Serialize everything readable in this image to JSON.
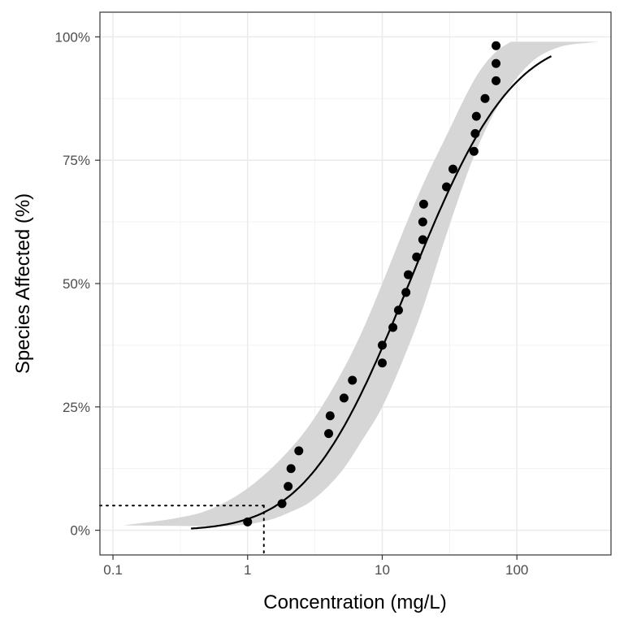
{
  "chart_data": {
    "type": "scatter",
    "title": "",
    "xlabel": "Concentration (mg/L)",
    "ylabel": "Species Affected (%)",
    "x_scale": "log10",
    "xlim": [
      0.08,
      500
    ],
    "ylim": [
      -0.05,
      1.05
    ],
    "grid": true,
    "legend": "none",
    "x_ticks": [
      {
        "value": 0.1,
        "label": "0.1"
      },
      {
        "value": 1,
        "label": "1"
      },
      {
        "value": 10,
        "label": "10"
      },
      {
        "value": 100,
        "label": "100"
      }
    ],
    "y_ticks": [
      {
        "value": 0,
        "label": "0%"
      },
      {
        "value": 0.25,
        "label": "25%"
      },
      {
        "value": 0.5,
        "label": "50%"
      },
      {
        "value": 0.75,
        "label": "75%"
      },
      {
        "value": 1,
        "label": "100%"
      }
    ],
    "points": [
      {
        "x": 1.0,
        "y": 0.017
      },
      {
        "x": 1.8,
        "y": 0.054
      },
      {
        "x": 2.0,
        "y": 0.089
      },
      {
        "x": 2.1,
        "y": 0.125
      },
      {
        "x": 2.4,
        "y": 0.161
      },
      {
        "x": 4.0,
        "y": 0.196
      },
      {
        "x": 4.1,
        "y": 0.232
      },
      {
        "x": 5.2,
        "y": 0.268
      },
      {
        "x": 6.0,
        "y": 0.304
      },
      {
        "x": 10.0,
        "y": 0.339
      },
      {
        "x": 10.0,
        "y": 0.375
      },
      {
        "x": 12.0,
        "y": 0.411
      },
      {
        "x": 13.2,
        "y": 0.446
      },
      {
        "x": 15.0,
        "y": 0.482
      },
      {
        "x": 15.6,
        "y": 0.518
      },
      {
        "x": 18.0,
        "y": 0.554
      },
      {
        "x": 20.0,
        "y": 0.589
      },
      {
        "x": 20.0,
        "y": 0.625
      },
      {
        "x": 20.3,
        "y": 0.661
      },
      {
        "x": 30.0,
        "y": 0.696
      },
      {
        "x": 33.5,
        "y": 0.732
      },
      {
        "x": 48.0,
        "y": 0.768
      },
      {
        "x": 49.0,
        "y": 0.804
      },
      {
        "x": 50.0,
        "y": 0.839
      },
      {
        "x": 58.0,
        "y": 0.875
      },
      {
        "x": 70.0,
        "y": 0.911
      },
      {
        "x": 70.0,
        "y": 0.946
      },
      {
        "x": 70.0,
        "y": 0.982
      }
    ],
    "fit_curve": {
      "distribution": "lognormal",
      "median": 15.8,
      "log10_sd": 0.6,
      "x_range": [
        0.38,
        180
      ],
      "color": "#000000"
    },
    "confidence_band": {
      "color": "#d6d6d6",
      "lower": [
        {
          "x": 0.7,
          "y": 0.008
        },
        {
          "x": 1.0,
          "y": 0.012
        },
        {
          "x": 1.5,
          "y": 0.022
        },
        {
          "x": 2.0,
          "y": 0.035
        },
        {
          "x": 3.0,
          "y": 0.06
        },
        {
          "x": 5.0,
          "y": 0.12
        },
        {
          "x": 7.0,
          "y": 0.18
        },
        {
          "x": 10.0,
          "y": 0.25
        },
        {
          "x": 15.0,
          "y": 0.36
        },
        {
          "x": 20.0,
          "y": 0.45
        },
        {
          "x": 30.0,
          "y": 0.6
        },
        {
          "x": 50.0,
          "y": 0.77
        },
        {
          "x": 80.0,
          "y": 0.88
        },
        {
          "x": 130.0,
          "y": 0.95
        },
        {
          "x": 200.0,
          "y": 0.978
        },
        {
          "x": 400.0,
          "y": 0.99
        }
      ],
      "upper": [
        {
          "x": 0.12,
          "y": 0.01
        },
        {
          "x": 0.3,
          "y": 0.025
        },
        {
          "x": 0.5,
          "y": 0.04
        },
        {
          "x": 1.0,
          "y": 0.085
        },
        {
          "x": 2.0,
          "y": 0.16
        },
        {
          "x": 3.0,
          "y": 0.22
        },
        {
          "x": 5.0,
          "y": 0.32
        },
        {
          "x": 7.0,
          "y": 0.4
        },
        {
          "x": 10.0,
          "y": 0.5
        },
        {
          "x": 15.0,
          "y": 0.62
        },
        {
          "x": 20.0,
          "y": 0.7
        },
        {
          "x": 30.0,
          "y": 0.8
        },
        {
          "x": 50.0,
          "y": 0.92
        },
        {
          "x": 70.0,
          "y": 0.97
        },
        {
          "x": 90.0,
          "y": 0.99
        }
      ]
    },
    "hc5_reference": {
      "x": 1.32,
      "y": 0.05,
      "style": "dotted"
    }
  }
}
